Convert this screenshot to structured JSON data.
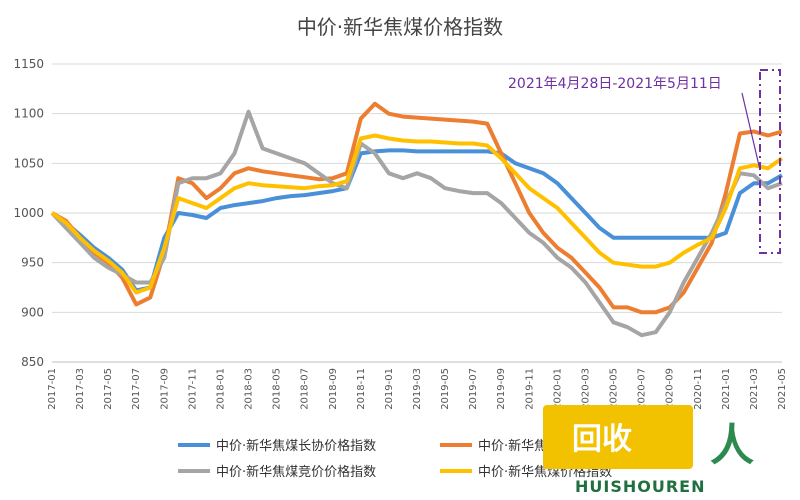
{
  "chart_data": {
    "type": "line",
    "title": "中价·新华焦煤价格指数",
    "xlabel": "",
    "ylabel": "",
    "ylim": [
      850,
      1150
    ],
    "yticks": [
      850,
      900,
      950,
      1000,
      1050,
      1100,
      1150
    ],
    "grid": true,
    "legend_position": "bottom",
    "x": [
      "2017-01",
      "2017-02",
      "2017-03",
      "2017-04",
      "2017-05",
      "2017-06",
      "2017-07",
      "2017-08",
      "2017-09",
      "2017-10",
      "2017-11",
      "2017-12",
      "2018-01",
      "2018-02",
      "2018-03",
      "2018-04",
      "2018-05",
      "2018-06",
      "2018-07",
      "2018-08",
      "2018-09",
      "2018-10",
      "2018-11",
      "2018-12",
      "2019-01",
      "2019-02",
      "2019-03",
      "2019-04",
      "2019-05",
      "2019-06",
      "2019-07",
      "2019-08",
      "2019-09",
      "2019-10",
      "2019-11",
      "2019-12",
      "2020-01",
      "2020-02",
      "2020-03",
      "2020-04",
      "2020-05",
      "2020-06",
      "2020-07",
      "2020-08",
      "2020-09",
      "2020-10",
      "2020-11",
      "2020-12",
      "2021-01",
      "2021-02",
      "2021-03",
      "2021-04",
      "2021-05"
    ],
    "series": [
      {
        "name": "中价·新华焦煤长协价格指数",
        "color": "#4a90d9",
        "values": [
          1000,
          990,
          978,
          965,
          955,
          943,
          922,
          925,
          975,
          1000,
          998,
          995,
          1005,
          1008,
          1010,
          1012,
          1015,
          1017,
          1018,
          1020,
          1022,
          1025,
          1060,
          1062,
          1063,
          1063,
          1062,
          1062,
          1062,
          1062,
          1062,
          1062,
          1060,
          1050,
          1045,
          1040,
          1030,
          1015,
          1000,
          985,
          975,
          975,
          975,
          975,
          975,
          975,
          975,
          975,
          980,
          1020,
          1030,
          1030,
          1038
        ]
      },
      {
        "name": "中价·新华焦煤",
        "color": "#ed7d31",
        "values": [
          1000,
          992,
          975,
          960,
          950,
          935,
          908,
          915,
          960,
          1035,
          1030,
          1015,
          1025,
          1040,
          1045,
          1042,
          1040,
          1038,
          1036,
          1034,
          1035,
          1040,
          1095,
          1110,
          1100,
          1097,
          1096,
          1095,
          1094,
          1093,
          1092,
          1090,
          1060,
          1030,
          1000,
          980,
          965,
          955,
          940,
          925,
          905,
          905,
          900,
          900,
          905,
          920,
          945,
          970,
          1020,
          1080,
          1082,
          1078,
          1082
        ]
      },
      {
        "name": "中价·新华焦煤竞价价格指数",
        "color": "#a5a5a5",
        "values": [
          1000,
          985,
          970,
          955,
          945,
          938,
          930,
          930,
          955,
          1030,
          1035,
          1035,
          1040,
          1060,
          1102,
          1065,
          1060,
          1055,
          1050,
          1040,
          1030,
          1025,
          1070,
          1060,
          1040,
          1035,
          1040,
          1035,
          1025,
          1022,
          1020,
          1020,
          1010,
          995,
          980,
          970,
          955,
          945,
          930,
          910,
          890,
          885,
          877,
          880,
          900,
          930,
          955,
          980,
          1010,
          1040,
          1038,
          1025,
          1030
        ]
      },
      {
        "name": "中价·新华焦煤价格指数",
        "color": "#ffc000",
        "values": [
          1000,
          990,
          975,
          962,
          952,
          940,
          920,
          925,
          965,
          1015,
          1010,
          1005,
          1015,
          1025,
          1030,
          1028,
          1027,
          1026,
          1025,
          1027,
          1028,
          1032,
          1075,
          1078,
          1075,
          1073,
          1072,
          1072,
          1071,
          1070,
          1070,
          1068,
          1055,
          1040,
          1025,
          1015,
          1005,
          990,
          975,
          960,
          950,
          948,
          946,
          946,
          950,
          960,
          968,
          975,
          1005,
          1045,
          1048,
          1045,
          1055
        ]
      }
    ],
    "annotation": "2021年4月28日-2021年5月11日"
  },
  "watermark": {
    "text": "回收",
    "sub": "HUISHOUREN"
  }
}
